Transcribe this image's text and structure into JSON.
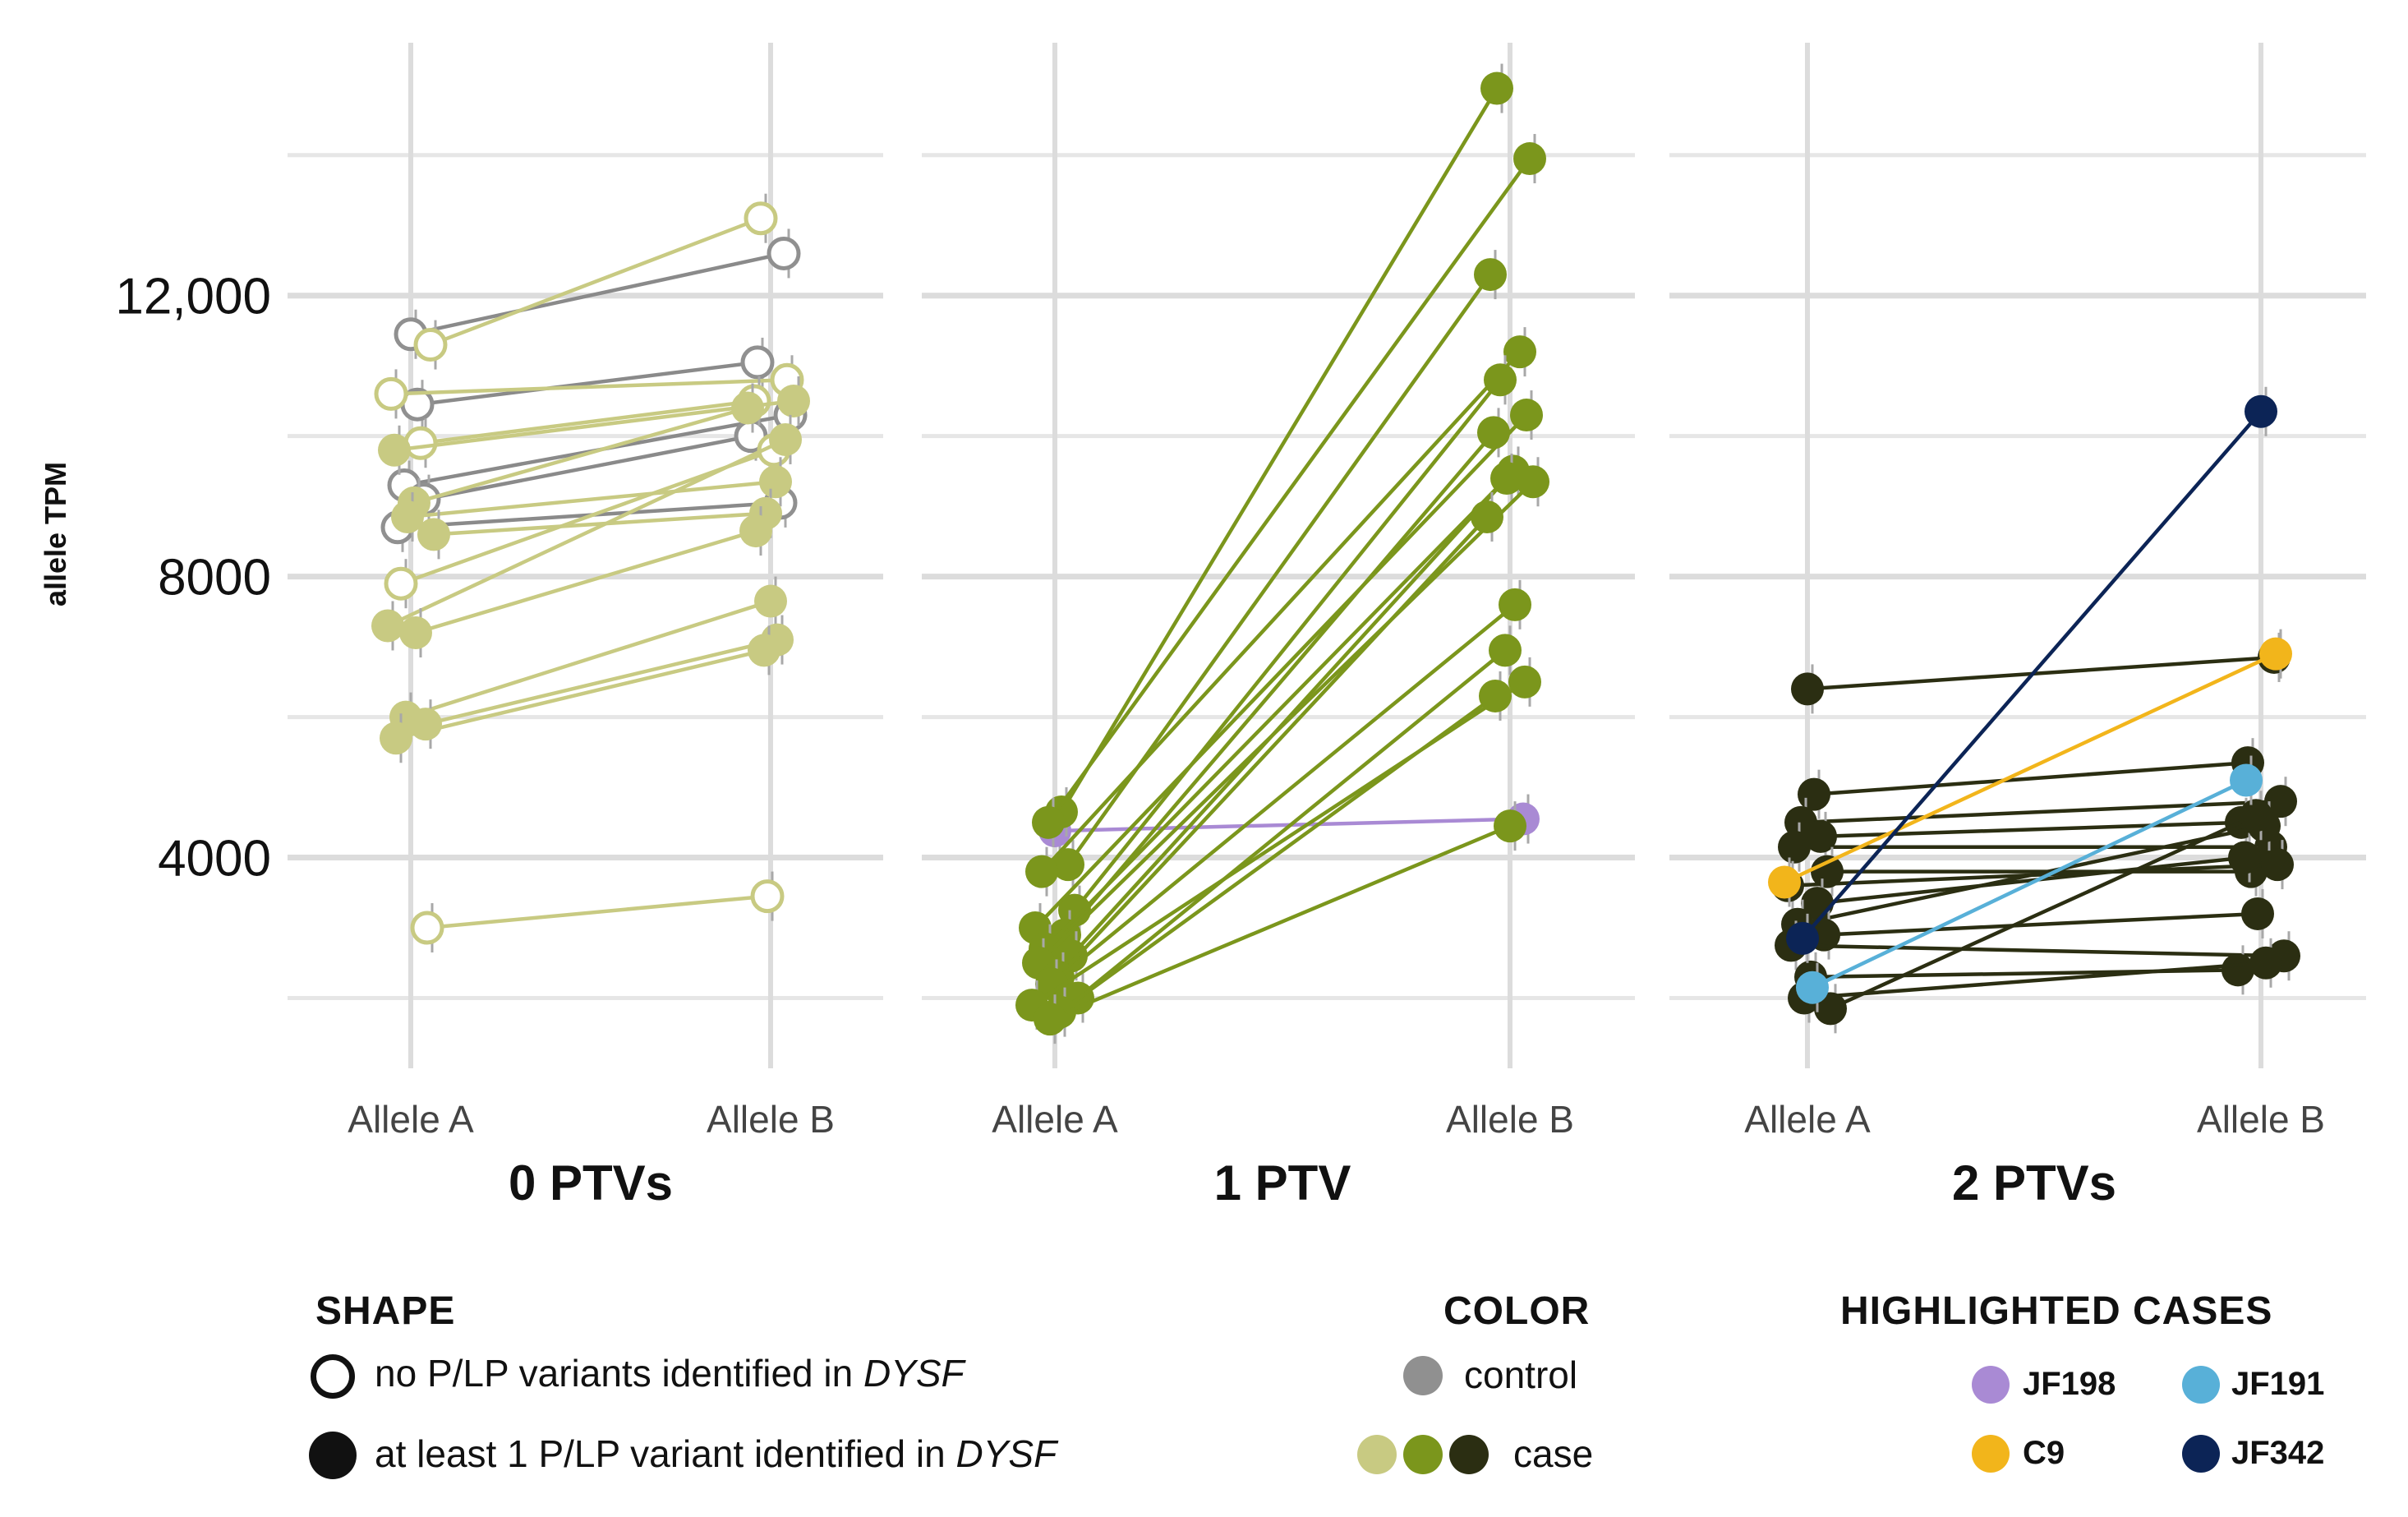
{
  "chart_data": {
    "type": "line",
    "ylabel": "allele TPM",
    "y_ticks": [
      "4000",
      "8000",
      "12,000"
    ],
    "y_tick_values": [
      4000,
      8000,
      12000
    ],
    "ylim": [
      1000,
      15600
    ],
    "categories": [
      "Allele A",
      "Allele B"
    ],
    "colors": {
      "control": "#909090",
      "case_0": "#c8ca82",
      "case_1": "#7b961c",
      "case_2": "#2b2e12",
      "JF198": "#a98ad4",
      "JF191": "#58b0d8",
      "C9": "#f2b51b",
      "JF342": "#0c2456"
    },
    "panels": [
      {
        "title": "0 PTVs",
        "series": [
          {
            "group": "control",
            "filled": false,
            "values": [
              11450,
              12600
            ]
          },
          {
            "group": "control",
            "filled": false,
            "values": [
              10450,
              11050
            ]
          },
          {
            "group": "control",
            "filled": false,
            "values": [
              9300,
              10300
            ]
          },
          {
            "group": "control",
            "filled": false,
            "values": [
              9100,
              10000
            ]
          },
          {
            "group": "control",
            "filled": false,
            "values": [
              8700,
              9050
            ]
          },
          {
            "group": "case_0",
            "filled": false,
            "values": [
              11300,
              13100
            ]
          },
          {
            "group": "case_0",
            "filled": false,
            "values": [
              10600,
              10800
            ]
          },
          {
            "group": "case_0",
            "filled": false,
            "values": [
              9900,
              10500
            ]
          },
          {
            "group": "case_0",
            "filled": false,
            "values": [
              7900,
              9800
            ]
          },
          {
            "group": "case_0",
            "filled": false,
            "values": [
              3000,
              3450
            ]
          },
          {
            "group": "case_0",
            "filled": true,
            "values": [
              9800,
              10500
            ]
          },
          {
            "group": "case_0",
            "filled": true,
            "values": [
              9050,
              10400
            ]
          },
          {
            "group": "case_0",
            "filled": true,
            "values": [
              8850,
              9350
            ]
          },
          {
            "group": "case_0",
            "filled": true,
            "values": [
              8600,
              8900
            ]
          },
          {
            "group": "case_0",
            "filled": true,
            "values": [
              7300,
              9950
            ]
          },
          {
            "group": "case_0",
            "filled": true,
            "values": [
              7200,
              8650
            ]
          },
          {
            "group": "case_0",
            "filled": true,
            "values": [
              6000,
              7650
            ]
          },
          {
            "group": "case_0",
            "filled": true,
            "values": [
              5900,
              7100
            ]
          },
          {
            "group": "case_0",
            "filled": true,
            "values": [
              5700,
              6950
            ]
          }
        ]
      },
      {
        "title": "1 PTV",
        "series": [
          {
            "group": "JF198",
            "filled": true,
            "values": [
              4380,
              4550
            ]
          },
          {
            "group": "case_1",
            "filled": true,
            "values": [
              4650,
              14950
            ]
          },
          {
            "group": "case_1",
            "filled": true,
            "values": [
              4500,
              13950
            ]
          },
          {
            "group": "case_1",
            "filled": true,
            "values": [
              3900,
              12300
            ]
          },
          {
            "group": "case_1",
            "filled": true,
            "values": [
              3800,
              11200
            ]
          },
          {
            "group": "case_1",
            "filled": true,
            "values": [
              3250,
              10800
            ]
          },
          {
            "group": "case_1",
            "filled": true,
            "values": [
              3000,
              10300
            ]
          },
          {
            "group": "case_1",
            "filled": true,
            "values": [
              2900,
              10050
            ]
          },
          {
            "group": "case_1",
            "filled": true,
            "values": [
              2700,
              9500
            ]
          },
          {
            "group": "case_1",
            "filled": true,
            "values": [
              2600,
              9400
            ]
          },
          {
            "group": "case_1",
            "filled": true,
            "values": [
              2500,
              9350
            ]
          },
          {
            "group": "case_1",
            "filled": true,
            "values": [
              2300,
              8850
            ]
          },
          {
            "group": "case_1",
            "filled": true,
            "values": [
              2200,
              7600
            ]
          },
          {
            "group": "case_1",
            "filled": true,
            "values": [
              2000,
              6950
            ]
          },
          {
            "group": "case_1",
            "filled": true,
            "values": [
              1900,
              6500
            ]
          },
          {
            "group": "case_1",
            "filled": true,
            "values": [
              1800,
              6300
            ]
          },
          {
            "group": "case_1",
            "filled": true,
            "values": [
              1700,
              4450
            ]
          }
        ]
      },
      {
        "title": "2 PTVs",
        "series": [
          {
            "group": "case_2",
            "filled": true,
            "values": [
              6400,
              6850
            ]
          },
          {
            "group": "case_2",
            "filled": true,
            "values": [
              4900,
              5350
            ]
          },
          {
            "group": "case_2",
            "filled": true,
            "values": [
              4500,
              4800
            ]
          },
          {
            "group": "case_2",
            "filled": true,
            "values": [
              4300,
              4500
            ]
          },
          {
            "group": "case_2",
            "filled": true,
            "values": [
              4150,
              4150
            ]
          },
          {
            "group": "case_2",
            "filled": true,
            "values": [
              3800,
              3800
            ]
          },
          {
            "group": "case_2",
            "filled": true,
            "values": [
              3600,
              3900
            ]
          },
          {
            "group": "case_2",
            "filled": true,
            "values": [
              3350,
              4000
            ]
          },
          {
            "group": "case_2",
            "filled": true,
            "values": [
              3050,
              4450
            ]
          },
          {
            "group": "case_2",
            "filled": true,
            "values": [
              2900,
              3200
            ]
          },
          {
            "group": "case_2",
            "filled": true,
            "values": [
              2750,
              2600
            ]
          },
          {
            "group": "case_2",
            "filled": true,
            "values": [
              2300,
              2400
            ]
          },
          {
            "group": "case_2",
            "filled": true,
            "values": [
              2000,
              2500
            ]
          },
          {
            "group": "case_2",
            "filled": true,
            "values": [
              1850,
              4600
            ]
          },
          {
            "group": "C9",
            "filled": true,
            "values": [
              3650,
              6900
            ]
          },
          {
            "group": "JF191",
            "filled": true,
            "values": [
              2150,
              5100
            ]
          },
          {
            "group": "JF342",
            "filled": true,
            "values": [
              2850,
              10350
            ]
          }
        ]
      }
    ],
    "legend": {
      "shape_title": "SHAPE",
      "shape_open": "no P/LP variants identified in",
      "shape_filled": "at least 1 P/LP variant identified in",
      "gene": "DYSF",
      "color_title": "COLOR",
      "color_control": "control",
      "color_case": "case",
      "cases_title": "HIGHLIGHTED CASES",
      "cases": [
        "JF198",
        "JF191",
        "C9",
        "JF342"
      ]
    }
  }
}
